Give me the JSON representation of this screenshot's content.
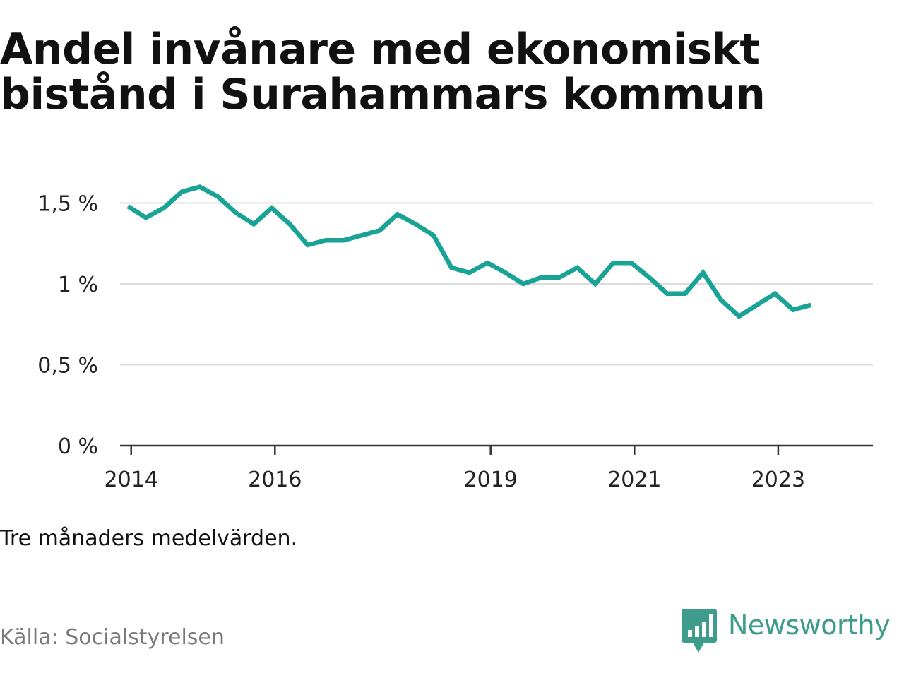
{
  "title": "Andel invånare med ekonomiskt bistånd i Surahammars kommun",
  "note": "Tre månaders medelvärden.",
  "source": "Källa: Socialstyrelsen",
  "brand": {
    "name": "Newsworthy",
    "icon": "newsworthy-bar-chart-icon",
    "color": "#3e9c8d"
  },
  "colors": {
    "line": "#18a396",
    "grid": "#dddddd",
    "axis": "#333333"
  },
  "chart_data": {
    "type": "line",
    "title": "Andel invånare med ekonomiskt bistånd i Surahammars kommun",
    "xlabel": "",
    "ylabel": "",
    "x_ticks": [
      "2014",
      "2016",
      "2019",
      "2021",
      "2023"
    ],
    "y_ticks": [
      {
        "value": 0,
        "label": "0 %"
      },
      {
        "value": 0.5,
        "label": "0,5 %"
      },
      {
        "value": 1.0,
        "label": "1 %"
      },
      {
        "value": 1.5,
        "label": "1,5 %"
      }
    ],
    "xlim": [
      "2014-01",
      "2024-04"
    ],
    "ylim": [
      0,
      1.7
    ],
    "grid": true,
    "legend": "none",
    "series": [
      {
        "x": [
          "2014-04",
          "2014-07",
          "2014-10",
          "2015-01",
          "2015-04",
          "2015-07",
          "2015-10",
          "2016-01",
          "2016-04",
          "2016-07",
          "2016-10",
          "2017-01",
          "2017-04",
          "2017-07",
          "2017-10",
          "2018-01",
          "2018-04",
          "2018-07",
          "2018-10",
          "2019-01",
          "2019-04",
          "2019-07",
          "2019-10",
          "2020-01",
          "2020-04",
          "2020-07",
          "2020-10",
          "2021-01",
          "2021-04",
          "2021-07",
          "2021-10",
          "2022-01",
          "2022-04",
          "2022-07",
          "2022-10",
          "2023-01",
          "2023-04",
          "2023-07",
          "2023-10"
        ],
        "values": [
          1.48,
          1.41,
          1.47,
          1.57,
          1.6,
          1.54,
          1.44,
          1.37,
          1.47,
          1.37,
          1.24,
          1.27,
          1.27,
          1.3,
          1.33,
          1.43,
          1.37,
          1.3,
          1.1,
          1.07,
          1.13,
          1.07,
          1.0,
          1.04,
          1.04,
          1.1,
          1.0,
          1.13,
          1.13,
          1.04,
          0.94,
          0.94,
          1.07,
          0.9,
          0.8,
          0.87,
          0.94,
          0.84,
          0.87
        ]
      }
    ]
  }
}
